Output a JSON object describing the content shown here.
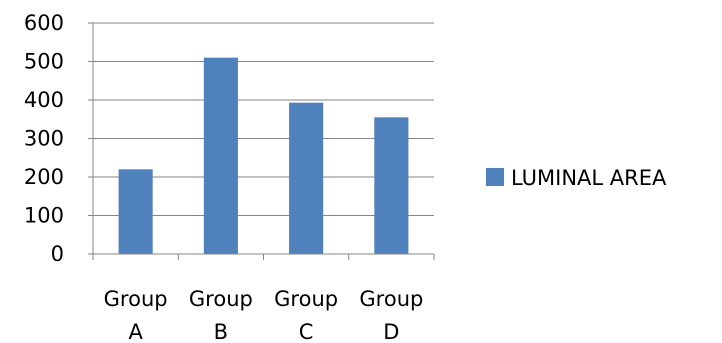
{
  "chart_data": {
    "type": "bar",
    "categories": [
      "Group A",
      "Group B",
      "Group C",
      "Group D"
    ],
    "category_lines": [
      [
        "Group",
        "A"
      ],
      [
        "Group",
        "B"
      ],
      [
        "Group",
        "C"
      ],
      [
        "Group",
        "D"
      ]
    ],
    "series": [
      {
        "name": "LUMINAL AREA",
        "values": [
          220,
          510,
          393,
          355
        ],
        "color": "#4f81bd"
      }
    ],
    "title": "",
    "xlabel": "",
    "ylabel": "",
    "ylim": [
      0,
      600
    ],
    "yticks": [
      0,
      100,
      200,
      300,
      400,
      500,
      600
    ],
    "grid": true,
    "legend_position": "right"
  },
  "colors": {
    "bar": "#4f81bd",
    "grid": "#868686",
    "axis": "#868686",
    "text": "#000000"
  }
}
